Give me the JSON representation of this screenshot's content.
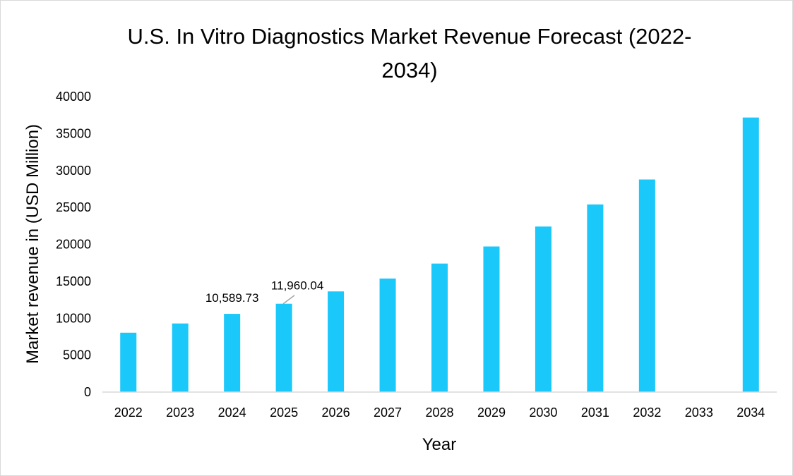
{
  "chart_data": {
    "type": "bar",
    "title_line1": "U.S. In Vitro Diagnostics Market Revenue Forecast (2022-",
    "title_line2": "2034)",
    "xlabel": "Year",
    "ylabel": "Market revenue in (USD Million)",
    "ylim": [
      0,
      40000
    ],
    "yticks": [
      0,
      5000,
      10000,
      15000,
      20000,
      25000,
      30000,
      35000,
      40000
    ],
    "grid": false,
    "bar_color": "#1ac8fa",
    "categories": [
      "2022",
      "2023",
      "2024",
      "2025",
      "2026",
      "2027",
      "2028",
      "2029",
      "2030",
      "2031",
      "2032",
      "2033",
      "2034"
    ],
    "values": [
      8040,
      9290,
      10589.73,
      11960.04,
      13630,
      15370,
      17400,
      19710,
      22410,
      25400,
      28780,
      null,
      37170
    ],
    "data_labels": {
      "2024": "10,589.73",
      "2025": "11,960.04"
    }
  }
}
